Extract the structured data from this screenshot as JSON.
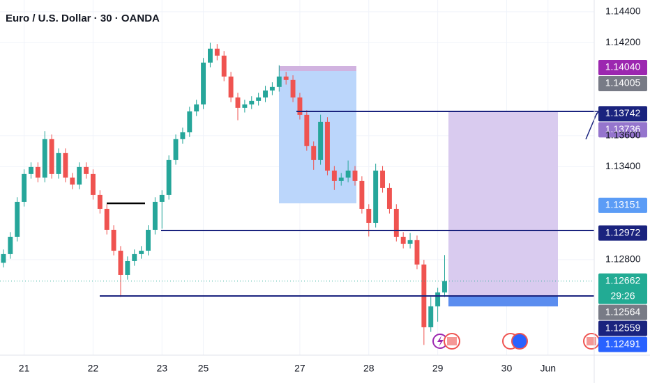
{
  "chart_data": {
    "type": "candlestick",
    "title": "Euro / U.S. Dollar · 30 · OANDA",
    "up_color": "#26a69a",
    "down_color": "#ef5350",
    "grid": true,
    "ylim": [
      1.12184,
      1.14476
    ],
    "yticks": [
      {
        "value": 1.144,
        "label": "1.14400"
      },
      {
        "value": 1.142,
        "label": "1.14200"
      },
      {
        "value": 1.136,
        "label": "1.13600"
      },
      {
        "value": 1.134,
        "label": "1.13400"
      },
      {
        "value": 1.128,
        "label": "1.12800"
      }
    ],
    "categories": [
      null,
      null,
      null,
      "21",
      null,
      null,
      null,
      null,
      null,
      null,
      null,
      null,
      null,
      "22",
      null,
      null,
      null,
      null,
      null,
      null,
      null,
      null,
      null,
      "23",
      null,
      null,
      null,
      null,
      null,
      "25",
      null,
      null,
      null,
      null,
      null,
      null,
      null,
      null,
      null,
      null,
      null,
      null,
      null,
      "27",
      null,
      null,
      null,
      null,
      null,
      null,
      null,
      null,
      null,
      "28",
      null,
      null,
      null,
      null,
      null,
      null,
      null,
      null,
      null,
      "29",
      null,
      null,
      null,
      null,
      null,
      null,
      null,
      null,
      null,
      "30",
      null,
      null,
      null,
      null,
      null,
      "Jun",
      null,
      null,
      null,
      null,
      null,
      null
    ],
    "open": [
      1.1278,
      1.12836,
      1.12948,
      1.13173,
      1.13353,
      1.13398,
      1.1333,
      1.13578,
      1.13353,
      1.13488,
      1.1333,
      1.13285,
      1.13398,
      1.13353,
      1.13218,
      1.13128,
      1.12993,
      1.12858,
      1.12701,
      1.12791,
      1.12836,
      1.12858,
      1.12993,
      1.13173,
      1.13218,
      1.13443,
      1.13578,
      1.13622,
      1.13757,
      1.13802,
      1.14072,
      1.14162,
      1.14117,
      1.13982,
      1.13847,
      1.1378,
      1.13802,
      1.13825,
      1.13847,
      1.13892,
      1.13915,
      1.13982,
      1.1396,
      1.13847,
      1.13735,
      1.13533,
      1.13443,
      1.1369,
      1.13375,
      1.13308,
      1.1333,
      1.13375,
      1.13308,
      1.13128,
      1.13038,
      1.13375,
      1.13263,
      1.13128,
      1.12948,
      1.12903,
      1.12926,
      1.12769,
      1.12364,
      1.12499,
      1.12589,
      null,
      null,
      null,
      null,
      null,
      null,
      null,
      null,
      null,
      null,
      null,
      null,
      null,
      null,
      null,
      null,
      null,
      null,
      null,
      null,
      null
    ],
    "high": [
      1.12866,
      1.12978,
      1.13203,
      1.13383,
      1.13428,
      1.13428,
      1.1363,
      1.13608,
      1.13518,
      1.13518,
      1.1336,
      1.13428,
      1.13428,
      1.13383,
      1.13248,
      1.13158,
      1.13023,
      1.12888,
      1.12821,
      1.12866,
      1.12888,
      1.13023,
      1.13203,
      1.13248,
      1.13473,
      1.13608,
      1.13652,
      1.13787,
      1.13832,
      1.14102,
      1.142,
      1.14192,
      1.14147,
      1.14012,
      1.13877,
      1.13832,
      1.13855,
      1.13877,
      1.13922,
      1.13945,
      1.14055,
      1.14012,
      1.1399,
      1.13877,
      1.13765,
      1.13563,
      1.13736,
      1.1372,
      1.13405,
      1.1336,
      1.1344,
      1.13405,
      1.13338,
      1.13158,
      1.1342,
      1.13405,
      1.13293,
      1.13158,
      1.12978,
      1.12972,
      1.12956,
      1.12799,
      1.1256,
      1.12619,
      1.1283,
      null,
      null,
      null,
      null,
      null,
      null,
      null,
      null,
      null,
      null,
      null,
      null,
      null,
      null,
      null,
      null,
      null,
      null,
      null,
      null,
      null
    ],
    "low": [
      1.1275,
      1.12806,
      1.12918,
      1.13143,
      1.13323,
      1.133,
      1.133,
      1.13323,
      1.13323,
      1.133,
      1.13255,
      1.13255,
      1.13323,
      1.13188,
      1.13098,
      1.12963,
      1.12828,
      1.1256,
      1.12671,
      1.12761,
      1.12806,
      1.12828,
      1.12963,
      1.13,
      1.13188,
      1.13413,
      1.13548,
      1.13592,
      1.13727,
      1.13772,
      1.14042,
      1.14087,
      1.13952,
      1.13817,
      1.137,
      1.1375,
      1.13772,
      1.13795,
      1.13817,
      1.13862,
      1.13885,
      1.1393,
      1.13817,
      1.13705,
      1.13503,
      1.1338,
      1.13413,
      1.13345,
      1.1325,
      1.13278,
      1.133,
      1.13278,
      1.13098,
      1.1295,
      1.13008,
      1.13233,
      1.13098,
      1.12918,
      1.12873,
      1.12873,
      1.12739,
      1.1225,
      1.12334,
      1.124,
      1.12559,
      null,
      null,
      null,
      null,
      null,
      null,
      null,
      null,
      null,
      null,
      null,
      null,
      null,
      null,
      null,
      null,
      null,
      null,
      null,
      null,
      null
    ],
    "close": [
      1.12836,
      1.12948,
      1.13173,
      1.13353,
      1.13398,
      1.1333,
      1.13578,
      1.13353,
      1.13488,
      1.1333,
      1.13285,
      1.13398,
      1.13353,
      1.13218,
      1.13128,
      1.12993,
      1.12858,
      1.12701,
      1.12791,
      1.12836,
      1.12858,
      1.12993,
      1.13173,
      1.13218,
      1.13443,
      1.13578,
      1.13622,
      1.13757,
      1.13802,
      1.14072,
      1.14162,
      1.14117,
      1.13982,
      1.13847,
      1.1378,
      1.13802,
      1.13825,
      1.13847,
      1.13892,
      1.13915,
      1.13982,
      1.1396,
      1.13847,
      1.13735,
      1.13533,
      1.13443,
      1.1369,
      1.13375,
      1.13308,
      1.1333,
      1.13375,
      1.13308,
      1.13128,
      1.13038,
      1.13375,
      1.13263,
      1.13128,
      1.12948,
      1.12903,
      1.12926,
      1.12769,
      1.12364,
      1.12499,
      1.12589,
      1.12662,
      null,
      null,
      null,
      null,
      null,
      null,
      null,
      null,
      null,
      null,
      null,
      null,
      null,
      null,
      null,
      null,
      null,
      null,
      null,
      null,
      null
    ],
    "countdown": "29:26",
    "price_tags": [
      {
        "value": 1.1404,
        "label": "1.14040",
        "color": "#9c27b0"
      },
      {
        "value": 1.14005,
        "label": "1.14005",
        "color": "#787b86"
      },
      {
        "value": 1.13742,
        "label": "1.13742",
        "color": "#1a237e"
      },
      {
        "value": 1.13736,
        "label": "1.13736",
        "color": "#9575cd"
      },
      {
        "value": 1.13151,
        "label": "1.13151",
        "color": "#5b9cf6"
      },
      {
        "value": 1.12972,
        "label": "1.12972",
        "color": "#1a237e"
      },
      {
        "value": 1.12662,
        "label": "1.12662",
        "color": "#22ab94"
      },
      {
        "value": 1.12564,
        "label": "1.12564",
        "color": "#787b86"
      },
      {
        "value": 1.12559,
        "label": "1.12559",
        "color": "#1a237e"
      },
      {
        "value": 1.12491,
        "label": "1.12491",
        "color": "#2962ff"
      }
    ]
  }
}
